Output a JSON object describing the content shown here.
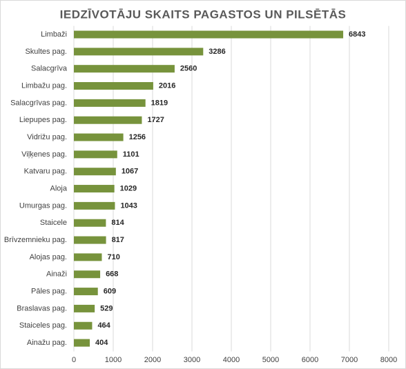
{
  "chart_data": {
    "type": "bar",
    "orientation": "horizontal",
    "title": "IEDZĪVOTĀJU SKAITS PAGASTOS UN PILSĒTĀS",
    "categories": [
      "Limbaži",
      "Skultes pag.",
      "Salacgrīva",
      "Limbažu pag.",
      "Salacgrīvas pag.",
      "Liepupes pag.",
      "Vidrižu pag.",
      "Viļķenes pag.",
      "Katvaru pag.",
      "Aloja",
      "Umurgas pag.",
      "Staicele",
      "Brīvzemnieku pag.",
      "Alojas pag.",
      "Ainaži",
      "Pāles pag.",
      "Braslavas pag.",
      "Staiceles pag.",
      "Ainažu pag."
    ],
    "values": [
      6843,
      3286,
      2560,
      2016,
      1819,
      1727,
      1256,
      1101,
      1067,
      1029,
      1043,
      814,
      817,
      710,
      668,
      609,
      529,
      464,
      404
    ],
    "color": "#77933c",
    "xlim": [
      0,
      8000
    ],
    "xticks": [
      0,
      1000,
      2000,
      3000,
      4000,
      5000,
      6000,
      7000,
      8000
    ],
    "grid": true,
    "data_labels": true
  }
}
